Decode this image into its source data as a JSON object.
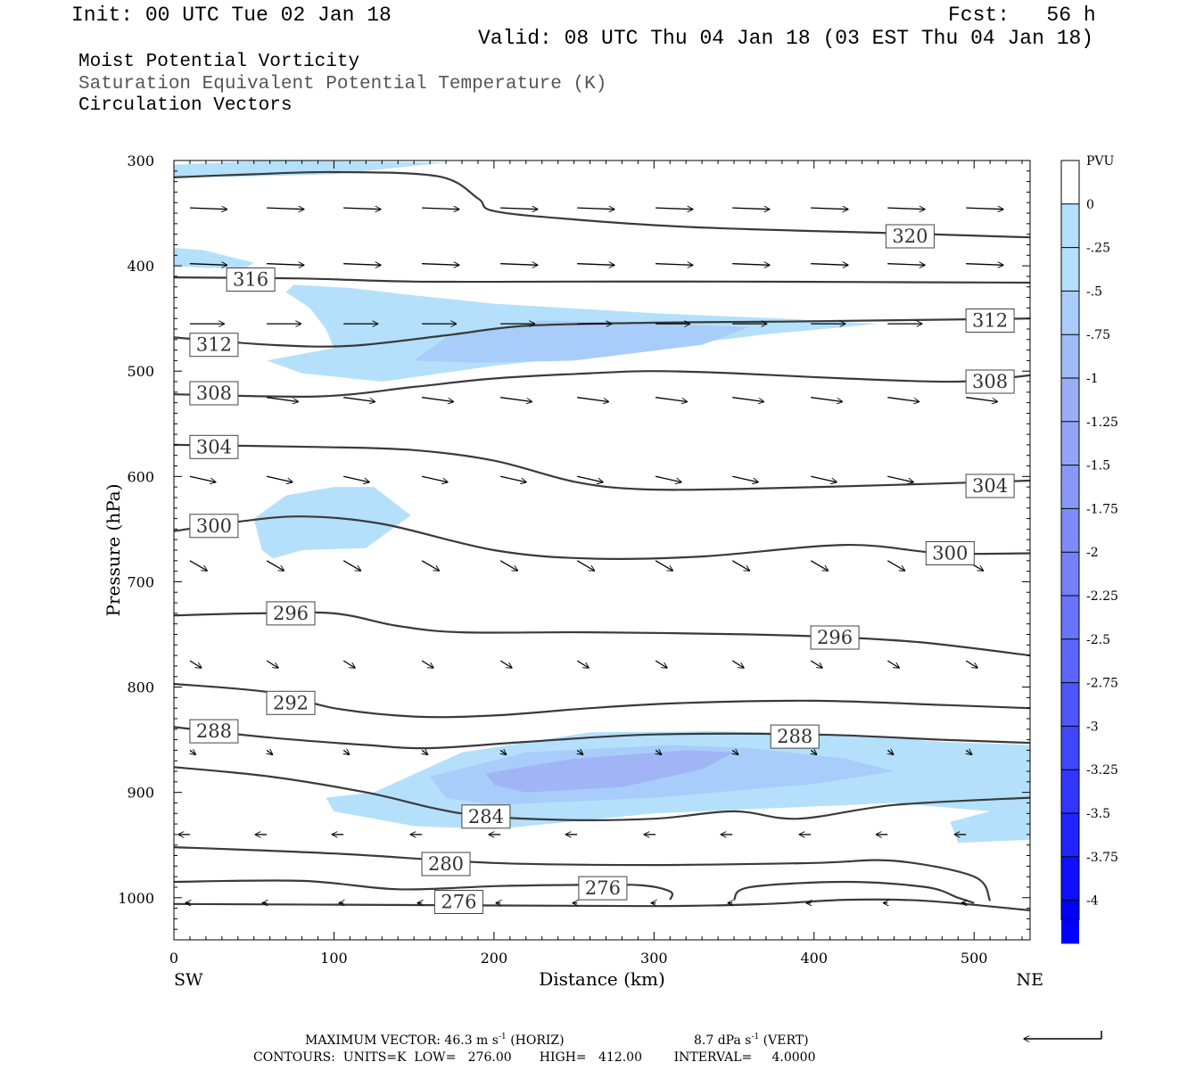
{
  "header": {
    "init": "Init: 00 UTC Tue 02 Jan 18",
    "fcst": "Fcst:   56 h",
    "valid": "Valid: 08 UTC Thu 04 Jan 18 (03 EST Thu 04 Jan 18)"
  },
  "fields": {
    "line1": "Moist Potential Vorticity",
    "line2": "Saturation Equivalent Potential Temperature (K)",
    "line3": "Circulation Vectors"
  },
  "footer": {
    "max_vector_prefix": "MAXIMUM VECTOR:  46.3 m s",
    "exp": "-1",
    "horiz": " (HORIZ)",
    "vert_prefix": "8.7 dPa s",
    "vert": " (VERT)",
    "contours": "CONTOURS:  UNITS=K  LOW=   276.00       HIGH=   412.00        INTERVAL=     4.0000"
  },
  "colors": {
    "pv_light": "#b4e0fc",
    "pv_mid": "#a8cdfa",
    "pv_dark": "#a0b4f6",
    "contour": "#3a3a3a",
    "vector": "#000000"
  },
  "chart_data": {
    "type": "cross-section",
    "xlabel": "Distance (km)",
    "ylabel": "Pressure (hPa)",
    "xlim": [
      0,
      535
    ],
    "ylim": [
      1040,
      300
    ],
    "y_scale": "linear",
    "x_ticks": [
      {
        "value": 0,
        "label": "0"
      },
      {
        "value": 100,
        "label": "100"
      },
      {
        "value": 200,
        "label": "200"
      },
      {
        "value": 300,
        "label": "300"
      },
      {
        "value": 400,
        "label": "400"
      },
      {
        "value": 500,
        "label": "500"
      }
    ],
    "y_ticks": [
      {
        "value": 300,
        "label": "300"
      },
      {
        "value": 400,
        "label": "400"
      },
      {
        "value": 500,
        "label": "500"
      },
      {
        "value": 600,
        "label": "600"
      },
      {
        "value": 700,
        "label": "700"
      },
      {
        "value": 800,
        "label": "800"
      },
      {
        "value": 900,
        "label": "900"
      },
      {
        "value": 1000,
        "label": "1000"
      }
    ],
    "endpoints": {
      "left": "SW",
      "right": "NE"
    },
    "colorbar": {
      "unit": "PVU",
      "levels": [
        {
          "label": "0",
          "color": "#ffffff"
        },
        {
          "label": "-.25",
          "color": "#b4e0fc"
        },
        {
          "label": "-.5",
          "color": "#b4e0fc"
        },
        {
          "label": "-.75",
          "color": "#a8cdfa"
        },
        {
          "label": "-1",
          "color": "#a0bcf7"
        },
        {
          "label": "-1.25",
          "color": "#9aaef6"
        },
        {
          "label": "-1.5",
          "color": "#92a4f6"
        },
        {
          "label": "-1.75",
          "color": "#8898f7"
        },
        {
          "label": "-2",
          "color": "#7e8cf7"
        },
        {
          "label": "-2.25",
          "color": "#7480f8"
        },
        {
          "label": "-2.5",
          "color": "#6874f9"
        },
        {
          "label": "-2.75",
          "color": "#5c66fa"
        },
        {
          "label": "-3",
          "color": "#4e56fb"
        },
        {
          "label": "-3.25",
          "color": "#4046fc"
        },
        {
          "label": "-3.5",
          "color": "#3236fd"
        },
        {
          "label": "-3.75",
          "color": "#2024fe"
        },
        {
          "label": "-4",
          "color": "#0c10ff"
        }
      ],
      "bottom_color": "#0000ff"
    },
    "pv_regions": [
      {
        "color": "#b4e0fc",
        "points": [
          [
            0,
            304
          ],
          [
            60,
            300
          ],
          [
            170,
            302
          ],
          [
            100,
            313
          ],
          [
            50,
            315
          ],
          [
            0,
            316
          ]
        ]
      },
      {
        "color": "#b4e0fc",
        "points": [
          [
            0,
            383
          ],
          [
            18,
            385
          ],
          [
            50,
            397
          ],
          [
            45,
            402
          ],
          [
            20,
            402
          ],
          [
            0,
            400
          ]
        ]
      },
      {
        "color": "#b4e0fc",
        "points": [
          [
            75,
            418
          ],
          [
            110,
            421
          ],
          [
            150,
            428
          ],
          [
            200,
            436
          ],
          [
            300,
            445
          ],
          [
            380,
            450
          ],
          [
            440,
            455
          ],
          [
            420,
            458
          ],
          [
            370,
            465
          ],
          [
            300,
            478
          ],
          [
            200,
            495
          ],
          [
            130,
            510
          ],
          [
            80,
            502
          ],
          [
            58,
            490
          ],
          [
            100,
            478
          ],
          [
            95,
            460
          ],
          [
            85,
            440
          ],
          [
            70,
            425
          ]
        ]
      },
      {
        "color": "#a8cdfa",
        "points": [
          [
            170,
            468
          ],
          [
            230,
            452
          ],
          [
            300,
            455
          ],
          [
            360,
            458
          ],
          [
            330,
            475
          ],
          [
            250,
            490
          ],
          [
            190,
            492
          ],
          [
            150,
            490
          ]
        ]
      },
      {
        "color": "#b4e0fc",
        "points": [
          [
            50,
            640
          ],
          [
            70,
            618
          ],
          [
            100,
            610
          ],
          [
            125,
            610
          ],
          [
            148,
            637
          ],
          [
            120,
            668
          ],
          [
            80,
            670
          ],
          [
            62,
            678
          ],
          [
            55,
            670
          ]
        ]
      },
      {
        "color": "#b4e0fc",
        "points": [
          [
            125,
            900
          ],
          [
            180,
            862
          ],
          [
            260,
            843
          ],
          [
            340,
            842
          ],
          [
            420,
            845
          ],
          [
            480,
            852
          ],
          [
            535,
            855
          ],
          [
            535,
            945
          ],
          [
            490,
            948
          ],
          [
            485,
            928
          ],
          [
            510,
            918
          ],
          [
            450,
            910
          ],
          [
            300,
            920
          ],
          [
            200,
            935
          ],
          [
            150,
            932
          ],
          [
            100,
            918
          ],
          [
            95,
            905
          ]
        ]
      },
      {
        "color": "#a8cdfa",
        "points": [
          [
            160,
            885
          ],
          [
            220,
            862
          ],
          [
            310,
            855
          ],
          [
            360,
            858
          ],
          [
            420,
            868
          ],
          [
            450,
            880
          ],
          [
            400,
            892
          ],
          [
            300,
            905
          ],
          [
            200,
            912
          ],
          [
            170,
            905
          ]
        ]
      },
      {
        "color": "#a0b4f6",
        "points": [
          [
            195,
            882
          ],
          [
            250,
            868
          ],
          [
            320,
            860
          ],
          [
            350,
            862
          ],
          [
            330,
            878
          ],
          [
            280,
            895
          ],
          [
            220,
            900
          ],
          [
            200,
            893
          ]
        ]
      }
    ],
    "contours": [
      {
        "value": 276,
        "points": [
          [
            0,
            1006
          ],
          [
            150,
            1007
          ],
          [
            300,
            1008
          ],
          [
            370,
            1006
          ],
          [
            420,
            1002
          ],
          [
            470,
            1003
          ],
          [
            535,
            1012
          ]
        ]
      },
      {
        "value": 276,
        "points": [
          [
            0,
            985
          ],
          [
            80,
            984
          ],
          [
            140,
            992
          ],
          [
            200,
            989
          ],
          [
            240,
            988
          ],
          [
            290,
            988
          ],
          [
            310,
            994
          ],
          [
            310,
            1002
          ]
        ]
      },
      {
        "value": 276,
        "points": [
          [
            350,
            1002
          ],
          [
            360,
            990
          ],
          [
            420,
            985
          ],
          [
            470,
            990
          ],
          [
            490,
            1000
          ],
          [
            500,
            1005
          ]
        ]
      },
      {
        "value": 280,
        "points": [
          [
            0,
            952
          ],
          [
            100,
            958
          ],
          [
            200,
            967
          ],
          [
            300,
            969
          ],
          [
            400,
            967
          ],
          [
            450,
            965
          ],
          [
            500,
            980
          ],
          [
            510,
            1003
          ]
        ]
      },
      {
        "value": 284,
        "points": [
          [
            0,
            876
          ],
          [
            60,
            885
          ],
          [
            120,
            900
          ],
          [
            180,
            920
          ],
          [
            240,
            926
          ],
          [
            300,
            925
          ],
          [
            350,
            918
          ],
          [
            390,
            925
          ],
          [
            450,
            912
          ],
          [
            535,
            905
          ]
        ]
      },
      {
        "value": 288,
        "points": [
          [
            0,
            838
          ],
          [
            60,
            848
          ],
          [
            120,
            855
          ],
          [
            160,
            858
          ],
          [
            220,
            852
          ],
          [
            300,
            845
          ],
          [
            400,
            845
          ],
          [
            480,
            850
          ],
          [
            535,
            853
          ]
        ]
      },
      {
        "value": 292,
        "points": [
          [
            0,
            797
          ],
          [
            60,
            805
          ],
          [
            100,
            820
          ],
          [
            150,
            828
          ],
          [
            200,
            827
          ],
          [
            260,
            820
          ],
          [
            320,
            815
          ],
          [
            400,
            813
          ],
          [
            480,
            817
          ],
          [
            535,
            820
          ]
        ]
      },
      {
        "value": 296,
        "points": [
          [
            0,
            732
          ],
          [
            50,
            730
          ],
          [
            100,
            730
          ],
          [
            140,
            742
          ],
          [
            180,
            748
          ],
          [
            260,
            748
          ],
          [
            360,
            750
          ],
          [
            420,
            753
          ],
          [
            470,
            758
          ],
          [
            535,
            770
          ]
        ]
      },
      {
        "value": 300,
        "points": [
          [
            0,
            652
          ],
          [
            40,
            643
          ],
          [
            80,
            638
          ],
          [
            130,
            645
          ],
          [
            200,
            670
          ],
          [
            260,
            678
          ],
          [
            330,
            676
          ],
          [
            420,
            665
          ],
          [
            480,
            673
          ],
          [
            535,
            673
          ]
        ]
      },
      {
        "value": 304,
        "points": [
          [
            0,
            570
          ],
          [
            90,
            572
          ],
          [
            150,
            575
          ],
          [
            200,
            585
          ],
          [
            250,
            605
          ],
          [
            290,
            612
          ],
          [
            350,
            612
          ],
          [
            450,
            608
          ],
          [
            535,
            604
          ]
        ]
      },
      {
        "value": 308,
        "points": [
          [
            0,
            522
          ],
          [
            90,
            524
          ],
          [
            150,
            515
          ],
          [
            200,
            507
          ],
          [
            260,
            502
          ],
          [
            300,
            500
          ],
          [
            350,
            502
          ],
          [
            420,
            507
          ],
          [
            490,
            510
          ],
          [
            535,
            504
          ]
        ]
      },
      {
        "value": 312,
        "points": [
          [
            0,
            468
          ],
          [
            60,
            475
          ],
          [
            110,
            476
          ],
          [
            170,
            466
          ],
          [
            220,
            457
          ],
          [
            300,
            454
          ],
          [
            380,
            453
          ],
          [
            535,
            450
          ]
        ]
      },
      {
        "value": 316,
        "points": [
          [
            0,
            411
          ],
          [
            80,
            412
          ],
          [
            150,
            415
          ],
          [
            250,
            415
          ],
          [
            350,
            415
          ],
          [
            535,
            416
          ]
        ]
      },
      {
        "value": 320,
        "points": [
          [
            0,
            316
          ],
          [
            50,
            313
          ],
          [
            100,
            311
          ],
          [
            165,
            315
          ],
          [
            190,
            336
          ],
          [
            200,
            348
          ],
          [
            250,
            356
          ],
          [
            320,
            363
          ],
          [
            400,
            367
          ],
          [
            450,
            369
          ],
          [
            535,
            373
          ]
        ]
      }
    ],
    "contour_labels": [
      {
        "text": "320",
        "x": 460,
        "y": 372
      },
      {
        "text": "316",
        "x": 48,
        "y": 413
      },
      {
        "text": "312",
        "x": 25,
        "y": 475
      },
      {
        "text": "312",
        "x": 510,
        "y": 452
      },
      {
        "text": "308",
        "x": 25,
        "y": 521
      },
      {
        "text": "308",
        "x": 510,
        "y": 510
      },
      {
        "text": "304",
        "x": 25,
        "y": 572
      },
      {
        "text": "304",
        "x": 510,
        "y": 609
      },
      {
        "text": "300",
        "x": 25,
        "y": 647
      },
      {
        "text": "300",
        "x": 485,
        "y": 673
      },
      {
        "text": "296",
        "x": 73,
        "y": 730
      },
      {
        "text": "296",
        "x": 413,
        "y": 753
      },
      {
        "text": "292",
        "x": 73,
        "y": 815
      },
      {
        "text": "288",
        "x": 25,
        "y": 842
      },
      {
        "text": "288",
        "x": 388,
        "y": 847
      },
      {
        "text": "284",
        "x": 195,
        "y": 923
      },
      {
        "text": "280",
        "x": 170,
        "y": 968
      },
      {
        "text": "276",
        "x": 268,
        "y": 991
      },
      {
        "text": "276",
        "x": 178,
        "y": 1004
      }
    ],
    "vector_rows": [
      {
        "p": 345,
        "u": 26,
        "w": 1
      },
      {
        "p": 398,
        "u": 26,
        "w": 1
      },
      {
        "p": 455,
        "u": 24,
        "w": 0
      },
      {
        "p": 525,
        "u": 22,
        "w": 3
      },
      {
        "p": 600,
        "u": 18,
        "w": 4
      },
      {
        "p": 680,
        "u": 12,
        "w": 7
      },
      {
        "p": 775,
        "u": 8,
        "w": 5
      },
      {
        "p": 860,
        "u": 4,
        "w": 3
      },
      {
        "p": 940,
        "u": -8,
        "w": 0
      },
      {
        "p": 1005,
        "u": -3,
        "w": 0
      }
    ],
    "vector_x": [
      10,
      58,
      106,
      155,
      204,
      252,
      301,
      349,
      398,
      446,
      495
    ],
    "reference_vector": "46.3 m/s horizontal, 8.7 dPa/s vertical"
  }
}
